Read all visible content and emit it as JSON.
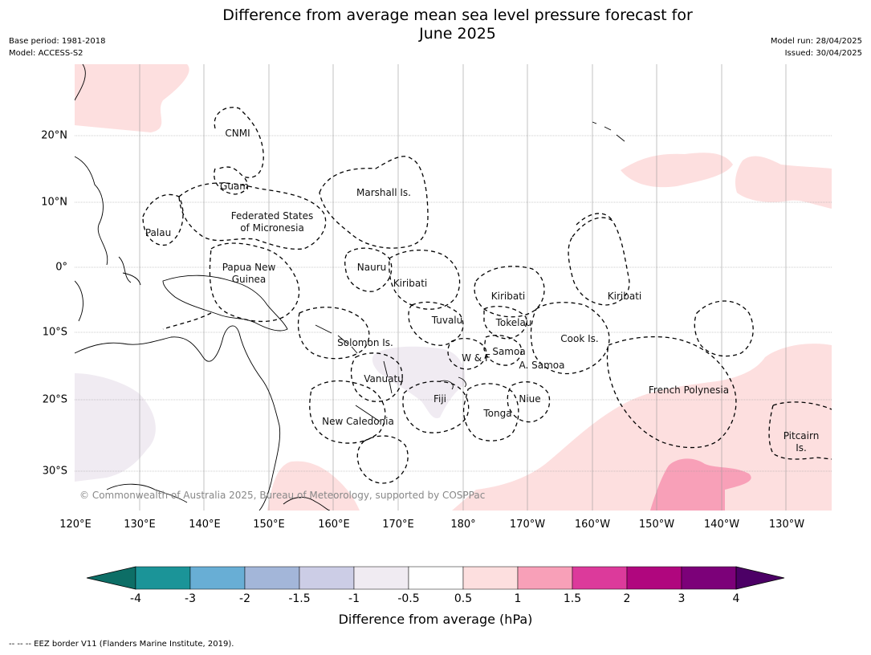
{
  "title_line1": "Difference from average mean sea level pressure forecast for",
  "title_line2": "June 2025",
  "meta_left": {
    "base_period": "Base period: 1981-2018",
    "model": "Model: ACCESS-S2"
  },
  "meta_right": {
    "model_run": "Model run: 28/04/2025",
    "issued": "Issued: 30/04/2025"
  },
  "map": {
    "lat_labels": [
      "20°N",
      "10°N",
      "0°",
      "10°S",
      "20°S",
      "30°S"
    ],
    "lon_labels": [
      "120°E",
      "130°E",
      "140°E",
      "150°E",
      "160°E",
      "170°E",
      "180°",
      "170°W",
      "160°W",
      "150°W",
      "140°W",
      "130°W"
    ],
    "places": [
      "CNMI",
      "Guam",
      "Marshall Is.",
      "Federated States",
      "of Micronesia",
      "Palau",
      "Nauru",
      "Papua New",
      "Guinea",
      "Kiribati",
      "Kiribati",
      "Kiribati",
      "Tuvalu",
      "Tokelau",
      "Cook Is.",
      "Solomon Is.",
      "W & F",
      "Samoa",
      "A. Samoa",
      "Vanuatu",
      "Fiji",
      "Niue",
      "Tonga",
      "French Polynesia",
      "New Caledonia",
      "Pitcairn",
      "Is."
    ],
    "copyright": "© Commonwealth of Australia 2025, Bureau of Meteorology, supported by COSPPac"
  },
  "colorbar": {
    "ticks": [
      "-4",
      "-3",
      "-2",
      "-1.5",
      "-1",
      "-0.5",
      "0.5",
      "1",
      "1.5",
      "2",
      "3",
      "4"
    ],
    "colors": [
      "#0d6e66",
      "#1b9498",
      "#68aed5",
      "#a3b6d9",
      "#cccde6",
      "#f0ebf2",
      "#ffffff",
      "#fddfdf",
      "#f8a0b8",
      "#dc3a9b",
      "#b0067e",
      "#7c0179",
      "#4c0066"
    ],
    "title": "Difference from average (hPa)"
  },
  "footnote": "--  --  -- EEZ border V11 (Flanders Marine Institute, 2019)."
}
